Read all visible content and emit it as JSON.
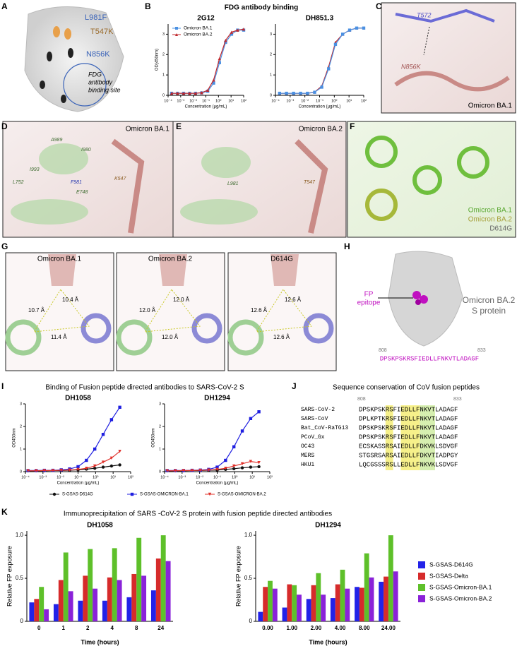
{
  "panels": {
    "A": {
      "label": "A",
      "annotations": [
        "L981F",
        "T547K",
        "N856K"
      ],
      "site": [
        "FDG",
        "antibody",
        "binding site"
      ]
    },
    "B": {
      "label": "B",
      "title": "FDG antibody binding"
    },
    "C": {
      "label": "C",
      "annotations": [
        "T572",
        "N856K"
      ],
      "caption": "Omicron BA.1"
    },
    "D": {
      "label": "D",
      "caption": "Omicron BA.1",
      "annotations": [
        "A989",
        "I980",
        "I993",
        "K547",
        "L752",
        "F981",
        "E748"
      ]
    },
    "E": {
      "label": "E",
      "caption": "Omicron BA.2",
      "annotations": [
        "L981",
        "T547"
      ]
    },
    "F": {
      "label": "F",
      "legend": [
        "Omicron BA.1",
        "Omicron BA.2",
        "D614G"
      ]
    },
    "G": {
      "label": "G",
      "titles": [
        "Omicron BA.1",
        "Omicron BA.2",
        "D614G"
      ],
      "distances": [
        [
          "10.7 Å",
          "10.4 Å",
          "11.4 Å"
        ],
        [
          "12.0 Å",
          "12.0 Å",
          "12.0 Å"
        ],
        [
          "12.6 Å",
          "12.6 Å",
          "12.6 Å"
        ]
      ]
    },
    "H": {
      "label": "H",
      "epitope": [
        "FP",
        "epitope"
      ],
      "protein": [
        "Omicron BA.2",
        "S protein"
      ],
      "start": "808",
      "end": "833",
      "sequence": "DPSKPSKRSFIEDLLFNKVTLADAGF"
    },
    "I": {
      "label": "I",
      "title": "Binding of Fusion peptide directed antibodies to SARS-CoV-2 S"
    },
    "J": {
      "label": "J",
      "title": "Sequence conservation of  CoV fusion peptides",
      "start": "808",
      "end": "833",
      "rows": [
        [
          "SARS-CoV-2",
          "DPSKPSKRSFIEDLLFNKVTLADAGF"
        ],
        [
          "SARS-CoV",
          "DPLKPTKRSFIEDLLFNKVTLADAGF"
        ],
        [
          "Bat_CoV-RaTG13",
          "DPSKPSKRSFIEDLLFNKVTLADAGF"
        ],
        [
          "PCoV_Gx",
          "DPSKPSKRSFIEDLLFNKVTLADAGF"
        ],
        [
          "OC43",
          "ECSKASSRSAIEDLLFDKVKLSDVGF"
        ],
        [
          "MERS",
          "STGSRSARSAIEDLLFDKVTIADPGY"
        ],
        [
          "HKU1",
          "LQCGSSSRSLLEDLLFNKVKLSDVGF"
        ]
      ]
    },
    "K": {
      "label": "K",
      "title": "Immunoprecipitation of SARS -CoV-2 S protein with fusion peptide directed antibodies"
    }
  },
  "chart_data": [
    {
      "type": "line",
      "title": "2G12",
      "x_label": "Concentration (µg/mL)",
      "y_label": "OD(450nm)",
      "xscale": "log",
      "legend": "upper left",
      "x": [
        0.00019,
        0.00056,
        0.0017,
        0.0051,
        0.015,
        0.046,
        0.14,
        0.41,
        1.2,
        3.7,
        11,
        33,
        100
      ],
      "xlim": [
        0.0001,
        100
      ],
      "xticks": [
        {
          "value": 0.0001,
          "label": "10⁻⁴"
        },
        {
          "value": 0.001,
          "label": "10⁻³"
        },
        {
          "value": 0.01,
          "label": "10⁻²"
        },
        {
          "value": 0.1,
          "label": "10⁻¹"
        },
        {
          "value": 1,
          "label": "10⁰"
        },
        {
          "value": 10,
          "label": "10¹"
        },
        {
          "value": 100,
          "label": "10²"
        }
      ],
      "ylim": [
        0,
        3.5
      ],
      "yticks": [
        0,
        1,
        2,
        3
      ],
      "series": [
        {
          "name": "Omicron BA.1",
          "color": "#4a90e2",
          "marker": "square",
          "values": [
            0.1,
            0.1,
            0.1,
            0.1,
            0.1,
            0.12,
            0.2,
            0.6,
            1.6,
            2.6,
            3.0,
            3.2,
            3.2
          ]
        },
        {
          "name": "Omicron BA.2",
          "color": "#c0282d",
          "marker": "triangle",
          "values": [
            0.1,
            0.1,
            0.1,
            0.1,
            0.1,
            0.13,
            0.25,
            0.75,
            1.8,
            2.7,
            3.1,
            3.2,
            3.25
          ]
        }
      ]
    },
    {
      "type": "line",
      "title": "DH851.3",
      "x_label": "Concentration (µg/mL)",
      "xscale": "log",
      "x": [
        0.00019,
        0.00056,
        0.0017,
        0.0051,
        0.015,
        0.046,
        0.14,
        0.41,
        1.2,
        3.7,
        11,
        33,
        100
      ],
      "xlim": [
        0.0001,
        100
      ],
      "xticks": [
        {
          "value": 0.0001,
          "label": "10⁻⁴"
        },
        {
          "value": 0.001,
          "label": "10⁻³"
        },
        {
          "value": 0.01,
          "label": "10⁻²"
        },
        {
          "value": 0.1,
          "label": "10⁻¹"
        },
        {
          "value": 1,
          "label": "10⁰"
        },
        {
          "value": 10,
          "label": "10¹"
        },
        {
          "value": 100,
          "label": "10²"
        }
      ],
      "ylim": [
        0,
        3.5
      ],
      "yticks": [
        0,
        1,
        2,
        3
      ],
      "series": [
        {
          "color": "#c0282d",
          "marker": "triangle",
          "values": [
            0.1,
            0.1,
            0.1,
            0.1,
            0.1,
            0.16,
            0.45,
            1.4,
            2.6,
            3.0,
            3.2,
            3.3,
            3.3
          ]
        },
        {
          "color": "#4a90e2",
          "marker": "square",
          "values": [
            0.1,
            0.1,
            0.1,
            0.1,
            0.1,
            0.15,
            0.4,
            1.3,
            2.5,
            3.0,
            3.2,
            3.3,
            3.3
          ]
        }
      ]
    },
    {
      "type": "line",
      "title": "DH1058",
      "x_label": "Concentration (µg/mL)",
      "y_label": "OD450nm",
      "xscale": "log",
      "legend": "bottom",
      "x": [
        0.00014,
        0.00041,
        0.0012,
        0.0037,
        0.011,
        0.033,
        0.1,
        0.3,
        0.9,
        2.7,
        8.1,
        24
      ],
      "xlim": [
        0.0001,
        100
      ],
      "xticks": [
        {
          "value": 0.0001,
          "label": "10⁻⁴"
        },
        {
          "value": 0.001,
          "label": "10⁻³"
        },
        {
          "value": 0.01,
          "label": "10⁻²"
        },
        {
          "value": 0.1,
          "label": "10⁻¹"
        },
        {
          "value": 1,
          "label": "10⁰"
        },
        {
          "value": 10,
          "label": "10¹"
        },
        {
          "value": 100,
          "label": "10²"
        }
      ],
      "ylim": [
        0,
        3
      ],
      "yticks": [
        0,
        1,
        2,
        3
      ],
      "series": [
        {
          "name": "S-GSAS-D614G",
          "color": "#111111",
          "marker": "circle",
          "values": [
            0.04,
            0.04,
            0.04,
            0.05,
            0.05,
            0.06,
            0.08,
            0.11,
            0.15,
            0.2,
            0.25,
            0.3
          ]
        },
        {
          "name": "S-GSAS-OMICRON-BA.1",
          "color": "#1f1fe0",
          "marker": "square",
          "values": [
            0.05,
            0.05,
            0.06,
            0.06,
            0.08,
            0.12,
            0.22,
            0.5,
            1.0,
            1.65,
            2.3,
            2.85
          ]
        },
        {
          "name": "S-GSAS-OMICRON-BA.2",
          "color": "#e0302a",
          "marker": "triangle-down",
          "values": [
            0.04,
            0.04,
            0.05,
            0.05,
            0.06,
            0.07,
            0.1,
            0.15,
            0.25,
            0.42,
            0.6,
            0.9
          ]
        }
      ]
    },
    {
      "type": "line",
      "title": "DH1294",
      "x_label": "Concentration (µg/mL)",
      "y_label": "OD450nm",
      "xscale": "log",
      "x": [
        0.00014,
        0.00041,
        0.0012,
        0.0037,
        0.011,
        0.033,
        0.1,
        0.3,
        0.9,
        2.7,
        8.1,
        24
      ],
      "xlim": [
        0.0001,
        100
      ],
      "xticks": [
        {
          "value": 0.0001,
          "label": "10⁻⁴"
        },
        {
          "value": 0.001,
          "label": "10⁻³"
        },
        {
          "value": 0.01,
          "label": "10⁻²"
        },
        {
          "value": 0.1,
          "label": "10⁻¹"
        },
        {
          "value": 1,
          "label": "10⁰"
        },
        {
          "value": 10,
          "label": "10¹"
        },
        {
          "value": 100,
          "label": "10²"
        }
      ],
      "ylim": [
        0,
        3
      ],
      "yticks": [
        0,
        1,
        2,
        3
      ],
      "series": [
        {
          "color": "#111111",
          "marker": "circle",
          "values": [
            0.04,
            0.04,
            0.04,
            0.05,
            0.05,
            0.06,
            0.07,
            0.1,
            0.13,
            0.17,
            0.2,
            0.22
          ]
        },
        {
          "color": "#1f1fe0",
          "marker": "square",
          "values": [
            0.05,
            0.05,
            0.05,
            0.06,
            0.07,
            0.1,
            0.2,
            0.5,
            1.1,
            1.8,
            2.35,
            2.65
          ]
        },
        {
          "color": "#e0302a",
          "marker": "triangle-down",
          "values": [
            0.04,
            0.04,
            0.05,
            0.05,
            0.06,
            0.07,
            0.1,
            0.15,
            0.25,
            0.35,
            0.45,
            0.4
          ]
        }
      ]
    },
    {
      "type": "bar",
      "title": "DH1058",
      "x_label": "Time (hours)",
      "y_label": "Relative FP exposure",
      "categories": [
        "0",
        "1",
        "2",
        "4",
        "8",
        "24"
      ],
      "ylim": [
        0,
        1.05
      ],
      "yticks": [
        0,
        0.5,
        {
          "value": 1,
          "label": "1.0"
        }
      ],
      "series": [
        {
          "color": "#2222e8",
          "values": [
            0.22,
            0.2,
            0.24,
            0.24,
            0.28,
            0.36
          ]
        },
        {
          "color": "#d62b2b",
          "values": [
            0.26,
            0.48,
            0.53,
            0.51,
            0.55,
            0.73
          ]
        },
        {
          "color": "#5ec02a",
          "values": [
            0.4,
            0.8,
            0.84,
            0.85,
            0.97,
            1.0
          ]
        },
        {
          "color": "#8a22d8",
          "values": [
            0.14,
            0.35,
            0.38,
            0.48,
            0.53,
            0.7
          ]
        }
      ]
    },
    {
      "type": "bar",
      "title": "DH1294",
      "x_label": "Time (hours)",
      "y_label": "Relative FP exposure",
      "legend": "right",
      "categories": [
        "0.00",
        "1.00",
        "2.00",
        "4.00",
        "8.00",
        "24.00"
      ],
      "ylim": [
        0,
        1.05
      ],
      "yticks": [
        0,
        0.5,
        {
          "value": 1,
          "label": "1.0"
        }
      ],
      "series": [
        {
          "name": "S-GSAS-D614G",
          "color": "#2222e8",
          "values": [
            0.11,
            0.16,
            0.26,
            0.27,
            0.4,
            0.46
          ]
        },
        {
          "name": "S-GSAS-Delta",
          "color": "#d62b2b",
          "values": [
            0.4,
            0.43,
            0.42,
            0.43,
            0.39,
            0.52
          ]
        },
        {
          "name": "S-GSAS-Omicron-BA.1",
          "color": "#5ec02a",
          "values": [
            0.47,
            0.42,
            0.56,
            0.6,
            0.79,
            1.0
          ]
        },
        {
          "name": "S-GSAS-Omicron-BA.2",
          "color": "#8a22d8",
          "values": [
            0.38,
            0.31,
            0.31,
            0.38,
            0.51,
            0.58
          ]
        }
      ]
    }
  ]
}
